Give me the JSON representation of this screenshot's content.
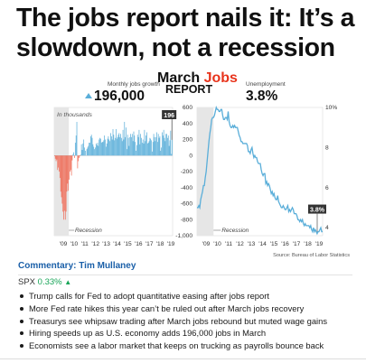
{
  "headline": "The jobs report nails it: It’s a slowdown, not a recession",
  "graphic": {
    "title_part1": "March ",
    "title_part2": "Jobs",
    "title_line2": "REPORT",
    "left_kpi": {
      "label": "Monthly jobs growth",
      "value": "196,000"
    },
    "right_kpi": {
      "label": "Unemployment",
      "value": "3.8%"
    },
    "left_unit_note": "In thousands",
    "recession_label": "Recession",
    "source": "Source: Bureau of Labor Statistics",
    "colors": {
      "accent": "#e8341c",
      "positive": "#5aaed9",
      "negative": "#f06c57",
      "line": "#5aaed9",
      "recession": "#e6e6e6",
      "callout": "#333333"
    }
  },
  "chart_data": [
    {
      "type": "bar",
      "ylabel": "In thousands",
      "ylim": [
        -1000,
        600
      ],
      "yticks": [
        "600",
        "400",
        "200",
        "0",
        "-200",
        "-400",
        "-600",
        "-800",
        "-1,000"
      ],
      "xticks": [
        "'09",
        "'10",
        "'11",
        "'12",
        "'13",
        "'14",
        "'15",
        "'16",
        "'17",
        "'18",
        "'19"
      ],
      "recession_period": [
        "2007-12",
        "2009-06"
      ],
      "x_range": [
        "2007-12",
        "2019-03"
      ],
      "series_color_positive": "#5aaed9",
      "series_color_negative": "#f06c57",
      "annotation": {
        "label": "196",
        "date": "2019-03",
        "value": 196
      },
      "values": [
        -8,
        -40,
        -70,
        -50,
        -180,
        -150,
        -200,
        -280,
        -450,
        -520,
        -600,
        -700,
        -800,
        -690,
        -800,
        -700,
        -450,
        -350,
        -440,
        -300,
        -200,
        -180,
        -250,
        -60,
        15,
        40,
        -30,
        160,
        250,
        420,
        -160,
        -70,
        -30,
        -10,
        10,
        140,
        70,
        150,
        200,
        100,
        60,
        0,
        80,
        100,
        120,
        160,
        160,
        240,
        260,
        220,
        140,
        110,
        80,
        100,
        150,
        130,
        160,
        120,
        200,
        220,
        210,
        160,
        170,
        170,
        190,
        250,
        200,
        110,
        150,
        210,
        240,
        200,
        180,
        280,
        240,
        200,
        330,
        260,
        190,
        220,
        330,
        210,
        230,
        260,
        280,
        230,
        270,
        220,
        180,
        320,
        200,
        420,
        230,
        350,
        80,
        260,
        220,
        120,
        230,
        270,
        230,
        270,
        180,
        300,
        250,
        170,
        60,
        130,
        260,
        230,
        320,
        140,
        270,
        220,
        160,
        200,
        150,
        320,
        180,
        250,
        290,
        150,
        160,
        180,
        220,
        210,
        190,
        50,
        170,
        270,
        230,
        180,
        230,
        290,
        170,
        270,
        220,
        240,
        60,
        100,
        290,
        250,
        320,
        220,
        180,
        270,
        270,
        220,
        250,
        120,
        190,
        310,
        20,
        196
      ]
    },
    {
      "type": "line",
      "ylabel": "Unemployment",
      "ylim": [
        4,
        10
      ],
      "yticks": [
        "10%",
        "8",
        "6",
        "4"
      ],
      "xticks": [
        "'09",
        "'10",
        "'11",
        "'12",
        "'13",
        "'14",
        "'15",
        "'16",
        "'17",
        "'18",
        "'19"
      ],
      "recession_period": [
        "2007-12",
        "2009-06"
      ],
      "x_range": [
        "2007-12",
        "2019-03"
      ],
      "series_color": "#5aaed9",
      "annotation": {
        "label": "3.8%",
        "date": "2019-03",
        "value": 3.8
      },
      "values": [
        5.0,
        5.0,
        5.1,
        5.0,
        5.4,
        5.6,
        5.8,
        6.1,
        6.1,
        6.5,
        6.8,
        7.3,
        7.8,
        8.3,
        8.7,
        9.0,
        9.4,
        9.5,
        9.5,
        9.6,
        9.8,
        10.0,
        9.9,
        9.9,
        9.8,
        9.8,
        9.9,
        9.9,
        9.6,
        9.4,
        9.4,
        9.5,
        9.5,
        9.4,
        9.8,
        9.3,
        9.1,
        9.0,
        9.0,
        9.1,
        9.0,
        9.1,
        9.0,
        9.0,
        9.0,
        8.8,
        8.6,
        8.5,
        8.3,
        8.3,
        8.2,
        8.2,
        8.2,
        8.2,
        8.2,
        8.1,
        7.8,
        7.8,
        7.7,
        7.9,
        8.0,
        7.7,
        7.5,
        7.6,
        7.5,
        7.5,
        7.3,
        7.2,
        7.2,
        7.2,
        6.9,
        6.7,
        6.6,
        6.7,
        6.7,
        6.2,
        6.3,
        6.1,
        6.2,
        6.1,
        5.9,
        5.7,
        5.8,
        5.6,
        5.7,
        5.5,
        5.4,
        5.4,
        5.6,
        5.3,
        5.2,
        5.1,
        5.0,
        5.0,
        5.1,
        5.0,
        4.9,
        4.9,
        5.0,
        5.1,
        4.8,
        4.9,
        4.8,
        4.9,
        5.0,
        4.9,
        4.7,
        4.7,
        4.7,
        4.6,
        4.4,
        4.4,
        4.3,
        4.4,
        4.3,
        4.4,
        4.2,
        4.1,
        4.2,
        4.1,
        4.1,
        4.1,
        4.1,
        4.0,
        4.1,
        3.9,
        3.8,
        4.0,
        3.8,
        3.9,
        3.8,
        3.7,
        3.8,
        3.8,
        3.9,
        4.0,
        3.8,
        3.8
      ]
    }
  ],
  "commentary": {
    "label": "Commentary: Tim Mullaney"
  },
  "ticker": {
    "symbol": "SPX",
    "change": "0.33%",
    "arrow_icon": "up-triangle-icon"
  },
  "news": [
    "Trump calls for Fed to adopt quantitative easing after jobs report",
    "More Fed rate hikes this year can’t be ruled out after March jobs recovery",
    "Treasurys see whipsaw trading after March jobs rebound but muted wage gains",
    "Hiring speeds up as U.S. economy adds 196,000 jobs in March",
    "Economists see a labor market that keeps on trucking as payrolls bounce back"
  ]
}
